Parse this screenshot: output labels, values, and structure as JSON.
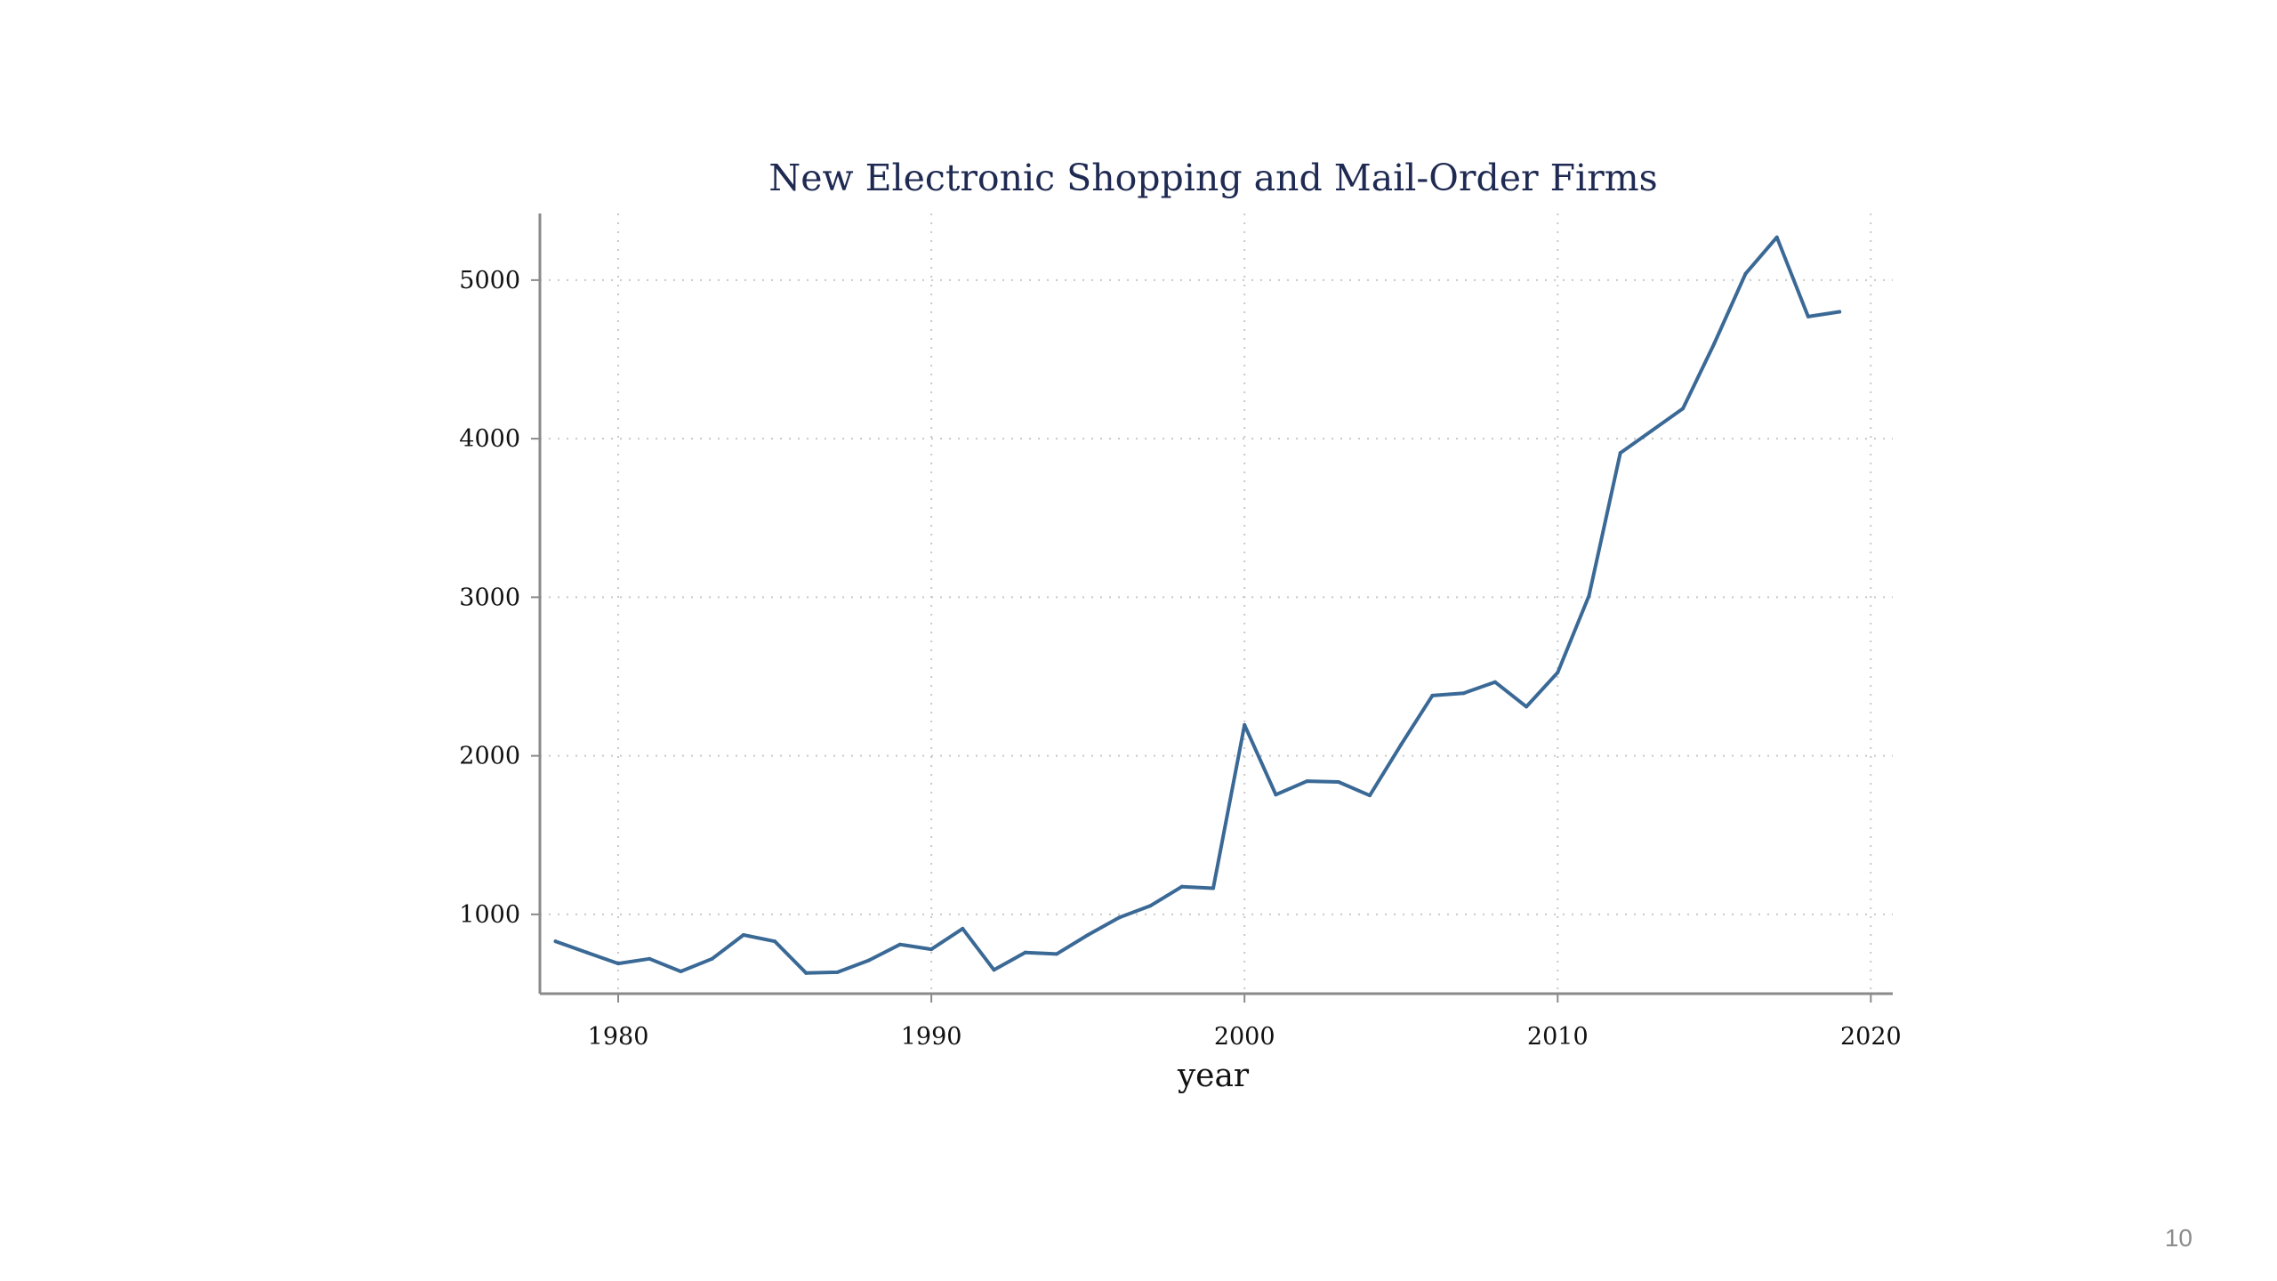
{
  "slide": {
    "number": "10"
  },
  "colors": {
    "series": "#3a6996",
    "title": "#1f2a52"
  },
  "chart_data": {
    "type": "line",
    "title": "New Electronic Shopping and Mail-Order Firms",
    "xlabel": "year",
    "ylabel": "",
    "xlim": [
      1977.5,
      2020.7
    ],
    "ylim": [
      500,
      5420
    ],
    "xticks": [
      1980,
      1990,
      2000,
      2010,
      2020
    ],
    "yticks": [
      1000,
      2000,
      3000,
      4000,
      5000
    ],
    "grid": true,
    "legend": "none",
    "x": [
      1978,
      1979,
      1980,
      1981,
      1982,
      1983,
      1984,
      1985,
      1986,
      1987,
      1988,
      1989,
      1990,
      1991,
      1992,
      1993,
      1994,
      1995,
      1996,
      1997,
      1998,
      1999,
      2000,
      2001,
      2002,
      2003,
      2004,
      2005,
      2006,
      2007,
      2008,
      2009,
      2010,
      2011,
      2012,
      2013,
      2014,
      2015,
      2016,
      2017,
      2018,
      2019
    ],
    "series": [
      {
        "values": [
          830,
          760,
          690,
          720,
          640,
          720,
          870,
          830,
          630,
          635,
          710,
          810,
          780,
          910,
          650,
          760,
          750,
          870,
          980,
          1055,
          1175,
          1165,
          2195,
          1755,
          1840,
          1835,
          1750,
          2070,
          2380,
          2395,
          2465,
          2310,
          2525,
          3010,
          3910,
          4050,
          4190,
          4600,
          5040,
          5270,
          4770,
          4800
        ]
      }
    ]
  }
}
